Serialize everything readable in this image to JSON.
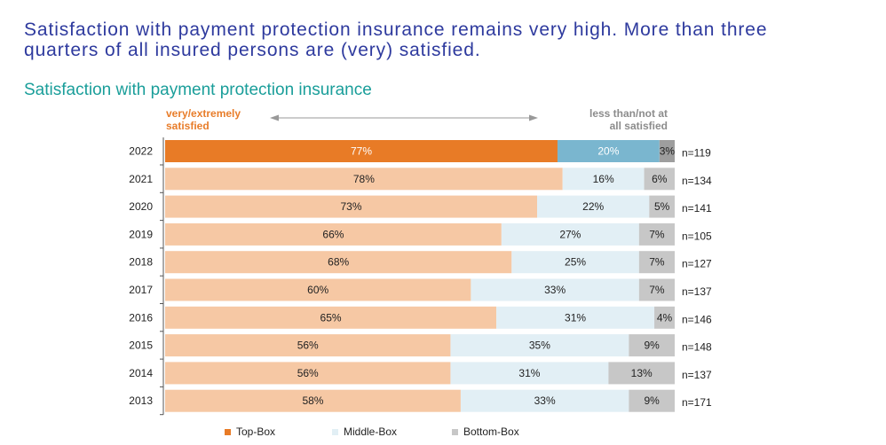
{
  "headline": "Satisfaction with payment protection insurance remains very high. More than three\nquarters of all insured persons are (very) satisfied.",
  "colors": {
    "top_2022": "#e87b26",
    "middle_2022": "#7ab6cf",
    "bottom_2022": "#9e9e9e",
    "top": "#f6c8a4",
    "middle": "#e2eff5",
    "bottom": "#c7c7c7",
    "arrow": "#999999"
  },
  "chart_data": {
    "type": "bar",
    "orientation": "horizontal",
    "stacked": true,
    "title": "Satisfaction with payment protection insurance",
    "header_left": "very/extremely\nsatisfied",
    "header_right": "less than/not at\nall satisfied",
    "categories": [
      "2022",
      "2021",
      "2020",
      "2019",
      "2018",
      "2017",
      "2016",
      "2015",
      "2014",
      "2013"
    ],
    "series": [
      {
        "name": "Top-Box",
        "values": [
          77,
          78,
          73,
          66,
          68,
          60,
          65,
          56,
          56,
          58
        ]
      },
      {
        "name": "Middle-Box",
        "values": [
          20,
          16,
          22,
          27,
          25,
          33,
          31,
          35,
          31,
          33
        ]
      },
      {
        "name": "Bottom-Box",
        "values": [
          3,
          6,
          5,
          7,
          7,
          7,
          4,
          9,
          13,
          9
        ]
      }
    ],
    "value_labels": [
      [
        "77%",
        "20%",
        "3%"
      ],
      [
        "78%",
        "16%",
        "6%"
      ],
      [
        "73%",
        "22%",
        "5%"
      ],
      [
        "66%",
        "27%",
        "7%"
      ],
      [
        "68%",
        "25%",
        "7%"
      ],
      [
        "60%",
        "33%",
        "7%"
      ],
      [
        "65%",
        "31%",
        "4%"
      ],
      [
        "56%",
        "35%",
        "9%"
      ],
      [
        "56%",
        "31%",
        "13%"
      ],
      [
        "58%",
        "33%",
        "9%"
      ]
    ],
    "n_labels": [
      "n=119",
      "n=134",
      "n=141",
      "n=105",
      "n=127",
      "n=137",
      "n=146",
      "n=148",
      "n=137",
      "n=171"
    ],
    "legend": [
      "Top-Box",
      "Middle-Box",
      "Bottom-Box"
    ],
    "legend_position": "bottom",
    "xlim": [
      0,
      100
    ],
    "grid": false
  }
}
